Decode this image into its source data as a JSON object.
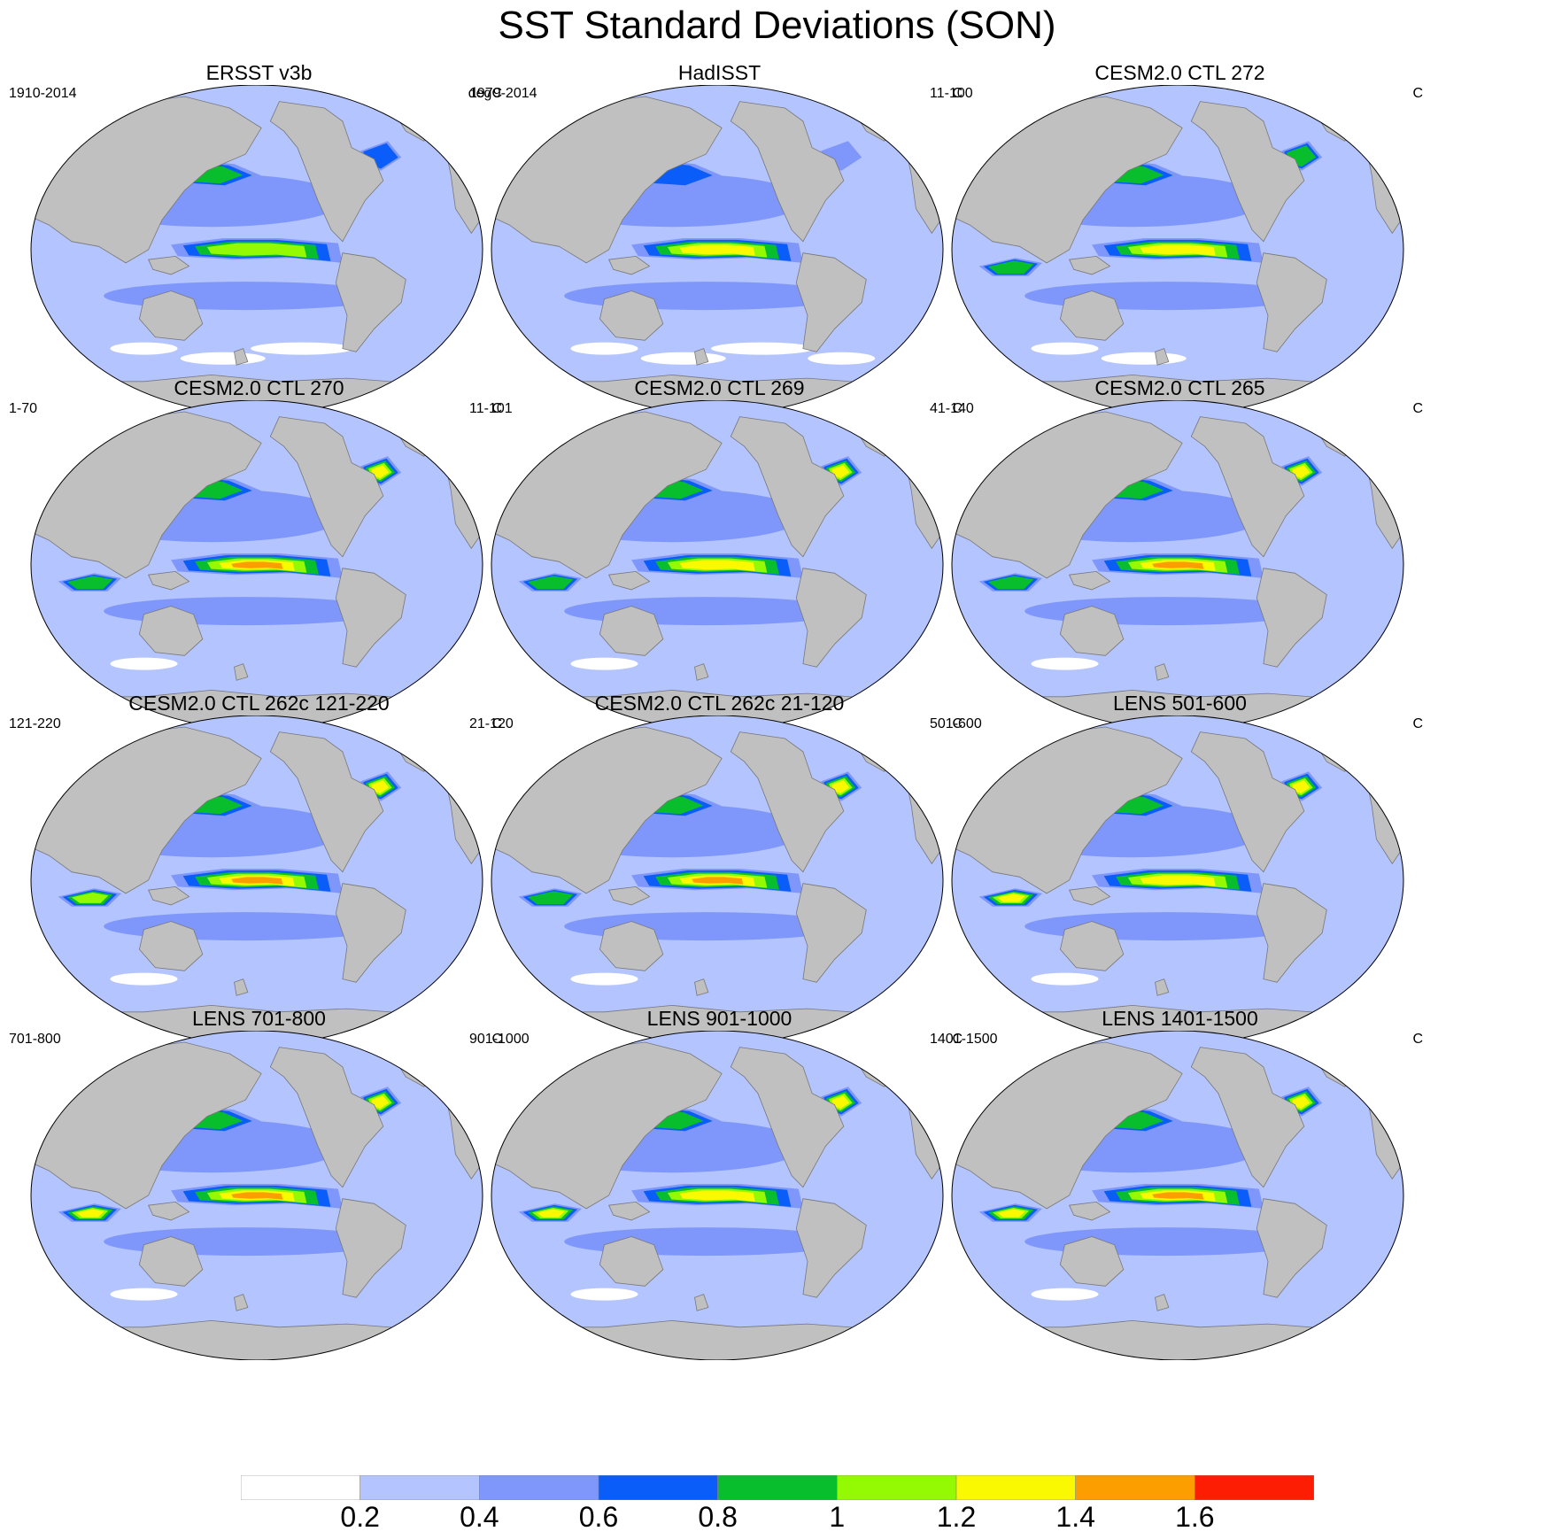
{
  "title": "SST Standard Deviations (SON)",
  "panels": [
    {
      "title": "ERSST v3b",
      "left": "1910-2014",
      "right": "degC",
      "enso": 1.2,
      "npac": 1.0,
      "natl": 0.8,
      "iod": 0.4,
      "white": 3
    },
    {
      "title": "HadISST",
      "left": "1979-2014",
      "right": "C",
      "enso": 1.3,
      "npac": 0.8,
      "natl": 0.6,
      "iod": 0.3,
      "white": 4
    },
    {
      "title": "CESM2.0 CTL 272",
      "left": "11-100",
      "right": "C",
      "enso": 1.3,
      "npac": 1.0,
      "natl": 1.0,
      "iod": 0.9,
      "white": 2
    },
    {
      "title": "CESM2.0 CTL 270",
      "left": "1-70",
      "right": "C",
      "enso": 1.5,
      "npac": 1.0,
      "natl": 1.4,
      "iod": 1.0,
      "white": 1
    },
    {
      "title": "CESM2.0 CTL 269",
      "left": "11-101",
      "right": "C",
      "enso": 1.4,
      "npac": 1.0,
      "natl": 1.4,
      "iod": 1.0,
      "white": 1
    },
    {
      "title": "CESM2.0 CTL 265",
      "left": "41-140",
      "right": "C",
      "enso": 1.6,
      "npac": 1.0,
      "natl": 1.4,
      "iod": 1.0,
      "white": 1
    },
    {
      "title": "CESM2.0 CTL 262c 121-220",
      "left": "121-220",
      "right": "C",
      "enso": 1.5,
      "npac": 1.0,
      "natl": 1.4,
      "iod": 1.2,
      "white": 1
    },
    {
      "title": "CESM2.0 CTL 262c 21-120",
      "left": "21-120",
      "right": "C",
      "enso": 1.6,
      "npac": 1.0,
      "natl": 1.4,
      "iod": 1.0,
      "white": 1
    },
    {
      "title": "LENS 501-600",
      "left": "501-600",
      "right": "C",
      "enso": 1.4,
      "npac": 1.0,
      "natl": 1.4,
      "iod": 1.4,
      "white": 1
    },
    {
      "title": "LENS 701-800",
      "left": "701-800",
      "right": "C",
      "enso": 1.5,
      "npac": 1.0,
      "natl": 1.4,
      "iod": 1.4,
      "white": 1
    },
    {
      "title": "LENS 901-1000",
      "left": "901-1000",
      "right": "C",
      "enso": 1.3,
      "npac": 1.0,
      "natl": 1.4,
      "iod": 1.4,
      "white": 1
    },
    {
      "title": "LENS 1401-1500",
      "left": "1401-1500",
      "right": "C",
      "enso": 1.5,
      "npac": 1.0,
      "natl": 1.4,
      "iod": 1.4,
      "white": 1
    }
  ],
  "colorbar": {
    "levels": [
      "0.2",
      "0.4",
      "0.6",
      "0.8",
      "1",
      "1.2",
      "1.4",
      "1.6"
    ],
    "colors": [
      "#ffffff",
      "#b4c4fe",
      "#7f97fb",
      "#0b5df9",
      "#08be2c",
      "#94fa04",
      "#fbf901",
      "#fd9e00",
      "#fc1d03"
    ]
  },
  "land_color": "#c0c0c0"
}
